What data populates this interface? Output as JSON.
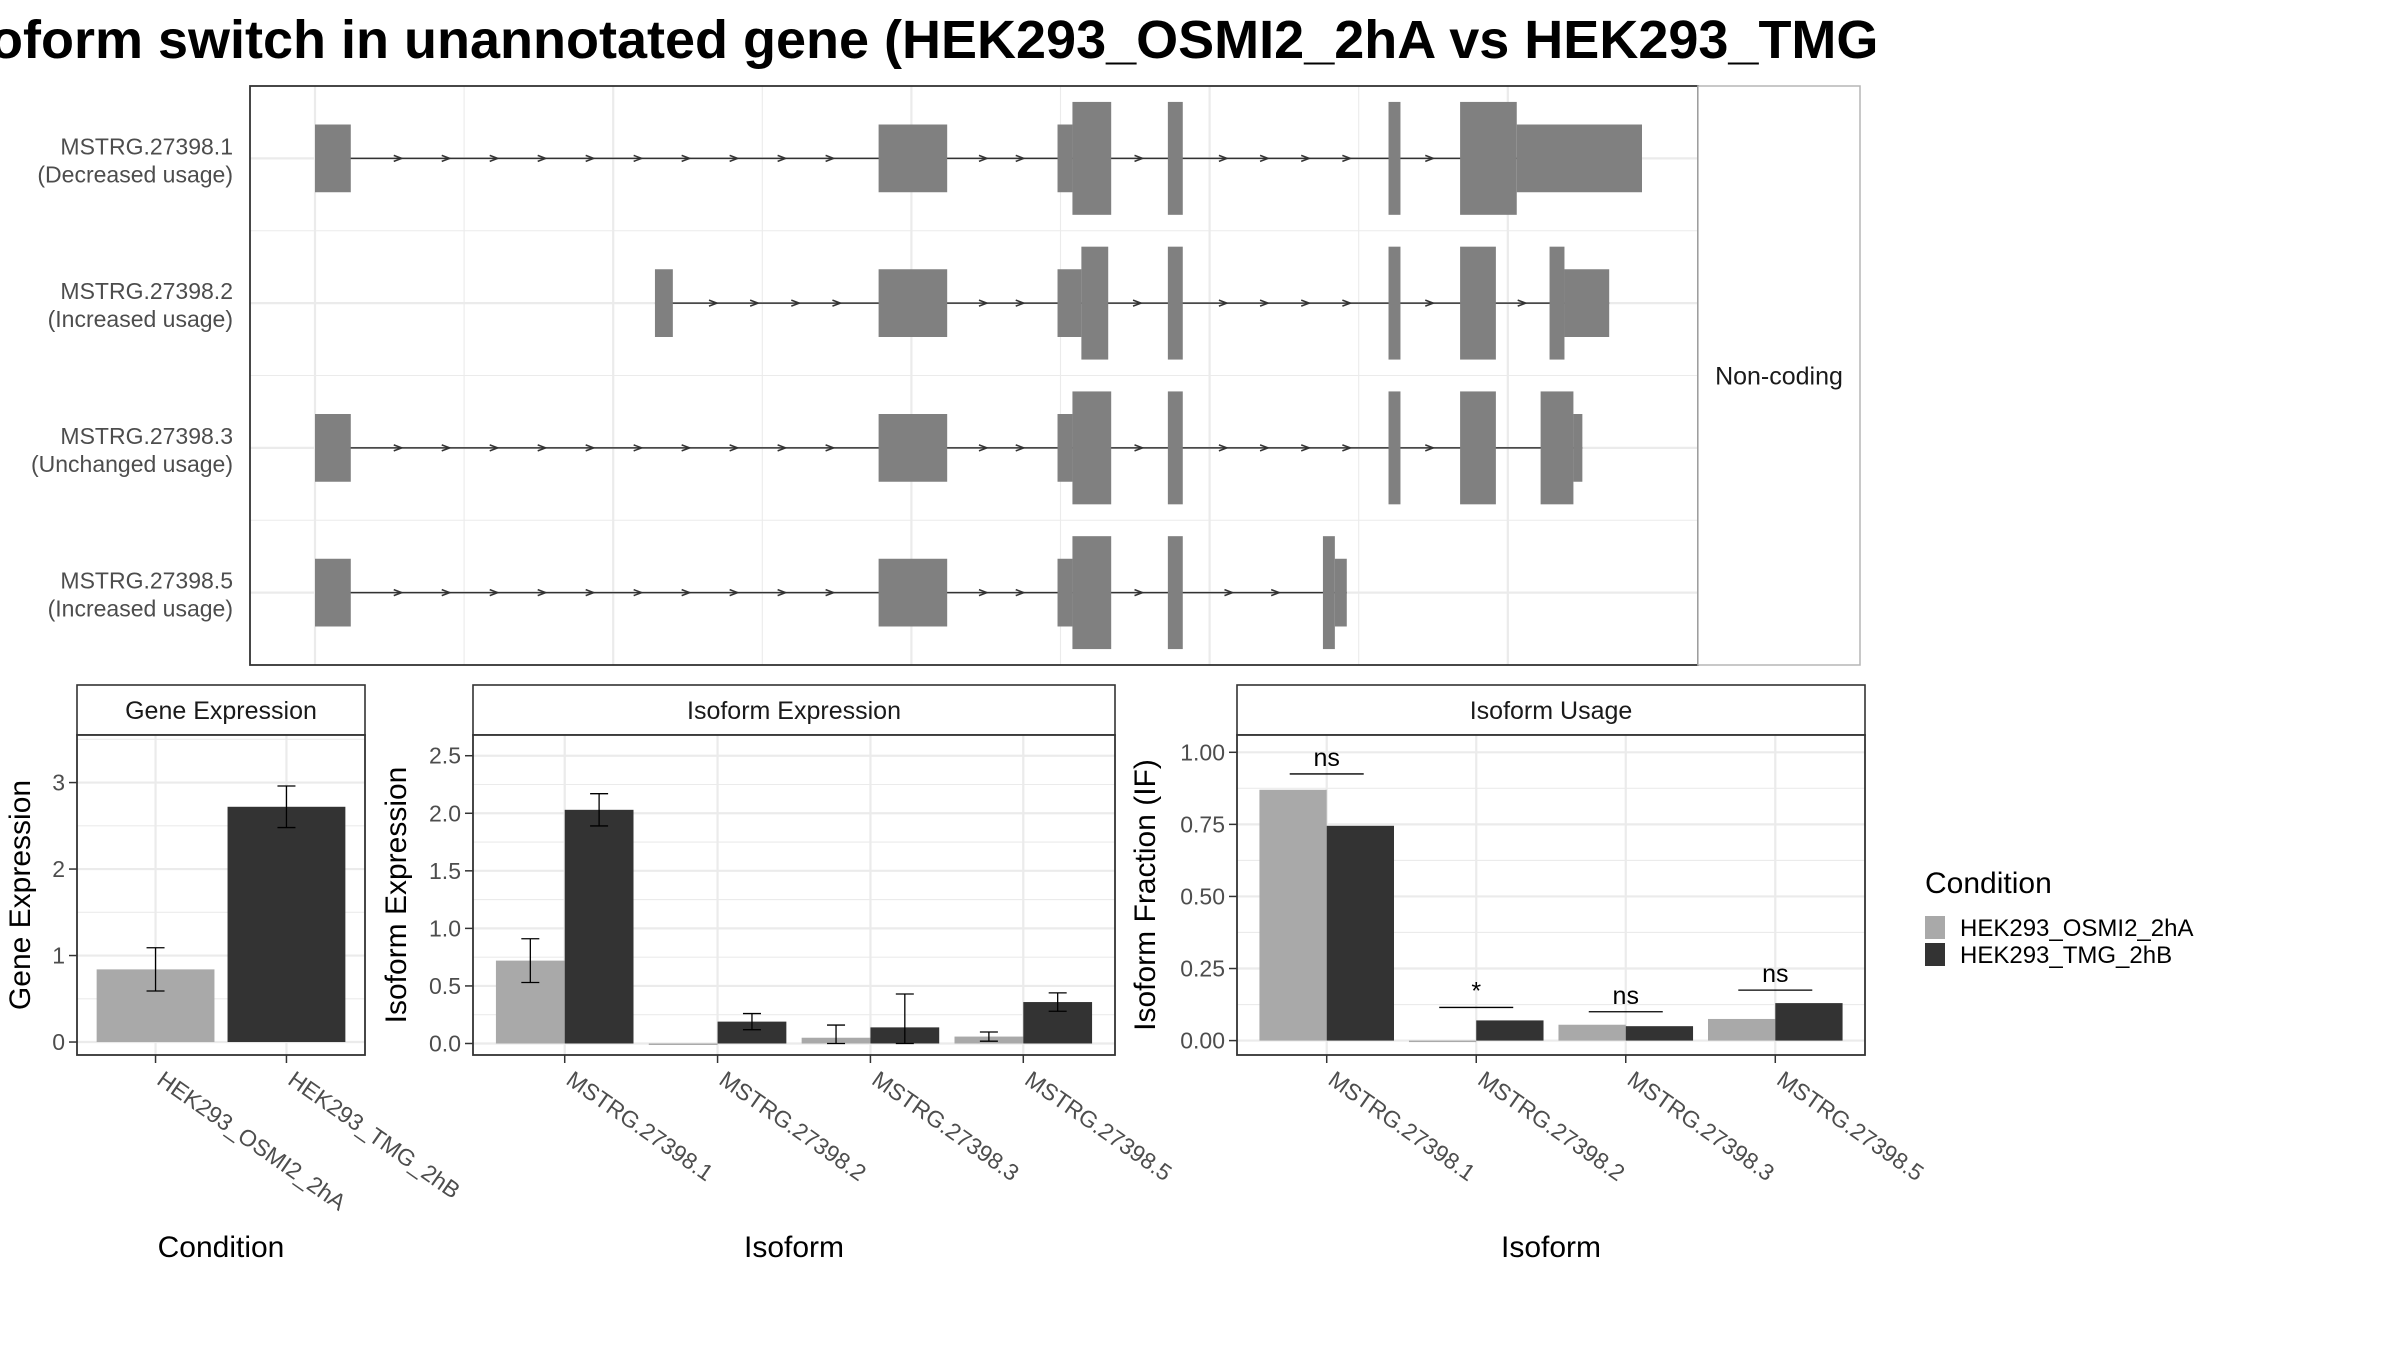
{
  "title": "oform switch in unannotated gene (HEK293_OSMI2_2hA vs HEK293_TMG",
  "colors": {
    "exon": "#808080",
    "condition_a": "#a9a9a9",
    "condition_b": "#333333",
    "grid": "#ebebeb",
    "panel_border": "#333333",
    "strip_fill": "#ffffff"
  },
  "chart_data": [
    {
      "type": "gene-structure",
      "panel_label": "Non-coding",
      "isoforms": [
        {
          "id": "MSTRG.27398.1",
          "usage": "(Decreased usage)",
          "exons": [
            [
              0.0,
              0.24,
              0.3
            ],
            [
              3.78,
              4.24,
              0.3
            ],
            [
              4.98,
              5.08,
              0.3
            ],
            [
              5.08,
              5.34,
              0.5
            ],
            [
              5.72,
              5.82,
              0.5
            ],
            [
              7.2,
              7.28,
              0.5
            ],
            [
              7.68,
              8.06,
              0.5
            ],
            [
              8.06,
              8.9,
              0.3
            ]
          ]
        },
        {
          "id": "MSTRG.27398.2",
          "usage": "(Increased usage)",
          "exons": [
            [
              2.28,
              2.4,
              0.3
            ],
            [
              3.78,
              4.24,
              0.3
            ],
            [
              4.98,
              5.14,
              0.3
            ],
            [
              5.14,
              5.32,
              0.5
            ],
            [
              5.72,
              5.82,
              0.5
            ],
            [
              7.2,
              7.28,
              0.5
            ],
            [
              7.68,
              7.92,
              0.5
            ],
            [
              8.28,
              8.38,
              0.5
            ],
            [
              8.38,
              8.68,
              0.3
            ]
          ]
        },
        {
          "id": "MSTRG.27398.3",
          "usage": "(Unchanged usage)",
          "exons": [
            [
              0.0,
              0.24,
              0.3
            ],
            [
              3.78,
              4.24,
              0.3
            ],
            [
              4.98,
              5.08,
              0.3
            ],
            [
              5.08,
              5.34,
              0.5
            ],
            [
              5.72,
              5.82,
              0.5
            ],
            [
              7.2,
              7.28,
              0.5
            ],
            [
              7.68,
              7.92,
              0.5
            ],
            [
              8.22,
              8.44,
              0.5
            ],
            [
              8.44,
              8.5,
              0.3
            ]
          ]
        },
        {
          "id": "MSTRG.27398.5",
          "usage": "(Increased usage)",
          "exons": [
            [
              0.0,
              0.24,
              0.3
            ],
            [
              3.78,
              4.24,
              0.3
            ],
            [
              4.98,
              5.08,
              0.3
            ],
            [
              5.08,
              5.34,
              0.5
            ],
            [
              5.72,
              5.82,
              0.5
            ],
            [
              6.76,
              6.84,
              0.5
            ],
            [
              6.84,
              6.92,
              0.3
            ]
          ]
        }
      ]
    },
    {
      "type": "bar",
      "strip": "Gene Expression",
      "xlabel": "Condition",
      "ylabel": "Gene Expression",
      "ylim": [
        -0.15,
        3.55
      ],
      "yticks": [
        0,
        1,
        2,
        3
      ],
      "yticks_labels": [
        "0",
        "1",
        "2",
        "3"
      ],
      "categories": [
        "HEK293_OSMI2_2hA",
        "HEK293_TMG_2hB"
      ],
      "values": [
        0.84,
        2.72
      ],
      "error_low": [
        0.59,
        2.48
      ],
      "error_high": [
        1.09,
        2.96
      ]
    },
    {
      "type": "bar",
      "strip": "Isoform Expression",
      "xlabel": "Isoform",
      "ylabel": "Isoform Expression",
      "ylim": [
        -0.1,
        2.68
      ],
      "yticks": [
        0,
        0.5,
        1,
        1.5,
        2,
        2.5
      ],
      "yticks_labels": [
        "0.0",
        "0.5",
        "1.0",
        "1.5",
        "2.0",
        "2.5"
      ],
      "categories": [
        "MSTRG.27398.1",
        "MSTRG.27398.2",
        "MSTRG.27398.3",
        "MSTRG.27398.5"
      ],
      "series": [
        {
          "name": "HEK293_OSMI2_2hA",
          "values": [
            0.72,
            0.0,
            0.05,
            0.06
          ],
          "error_low": [
            0.53,
            0.0,
            0.0,
            0.02
          ],
          "error_high": [
            0.91,
            0.0,
            0.16,
            0.1
          ]
        },
        {
          "name": "HEK293_TMG_2hB",
          "values": [
            2.03,
            0.19,
            0.14,
            0.36
          ],
          "error_low": [
            1.89,
            0.12,
            0.0,
            0.28
          ],
          "error_high": [
            2.17,
            0.26,
            0.43,
            0.44
          ]
        }
      ]
    },
    {
      "type": "bar",
      "strip": "Isoform Usage",
      "xlabel": "Isoform",
      "ylabel": "Isoform Fraction (IF)",
      "ylim": [
        -0.05,
        1.06
      ],
      "yticks": [
        0,
        0.25,
        0.5,
        0.75,
        1
      ],
      "yticks_labels": [
        "0.00",
        "0.25",
        "0.50",
        "0.75",
        "1.00"
      ],
      "categories": [
        "MSTRG.27398.1",
        "MSTRG.27398.2",
        "MSTRG.27398.3",
        "MSTRG.27398.5"
      ],
      "series": [
        {
          "name": "HEK293_OSMI2_2hA",
          "values": [
            0.87,
            0.0,
            0.055,
            0.075
          ]
        },
        {
          "name": "HEK293_TMG_2hB",
          "values": [
            0.745,
            0.07,
            0.05,
            0.13
          ]
        }
      ],
      "significance": [
        {
          "label": "ns",
          "y": 0.925
        },
        {
          "label": "*",
          "y": 0.115
        },
        {
          "label": "ns",
          "y": 0.1
        },
        {
          "label": "ns",
          "y": 0.175
        }
      ]
    }
  ],
  "legend": {
    "title": "Condition",
    "position": "right",
    "items": [
      "HEK293_OSMI2_2hA",
      "HEK293_TMG_2hB"
    ]
  }
}
